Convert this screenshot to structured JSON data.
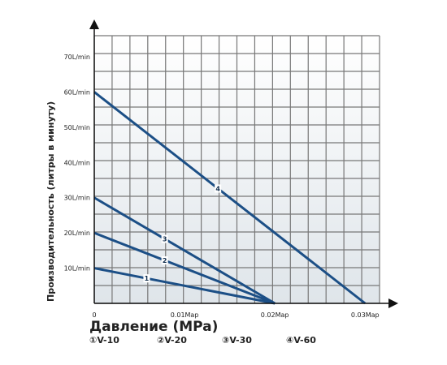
{
  "chart_data": {
    "type": "line",
    "xlabel": "Давление (MPa)",
    "ylabel": "Производительность (литры в минуту)",
    "xlim": [
      0,
      0.0316
    ],
    "ylim": [
      0,
      76
    ],
    "grid": true,
    "x_ticks": [
      {
        "value": 0,
        "label": "0"
      },
      {
        "value": 0.01,
        "label": "0.01Map"
      },
      {
        "value": 0.02,
        "label": "0.02Map"
      },
      {
        "value": 0.03,
        "label": "0.03Map"
      }
    ],
    "y_ticks": [
      {
        "value": 10,
        "label": "10L/min"
      },
      {
        "value": 20,
        "label": "20L/min"
      },
      {
        "value": 30,
        "label": "30L/min"
      },
      {
        "value": 40,
        "label": "40L/min"
      },
      {
        "value": 50,
        "label": "50L/min"
      },
      {
        "value": 60,
        "label": "60L/min"
      },
      {
        "value": 70,
        "label": "70L/min"
      }
    ],
    "line_color": "#1c4f86",
    "series": [
      {
        "marker": "1",
        "name": "V-10",
        "x": [
          0,
          0.02
        ],
        "y": [
          10,
          0
        ],
        "marker_x": 0.0058
      },
      {
        "marker": "2",
        "name": "V-20",
        "x": [
          0,
          0.02
        ],
        "y": [
          20,
          0
        ],
        "marker_x": 0.0078
      },
      {
        "marker": "3",
        "name": "V-30",
        "x": [
          0,
          0.02
        ],
        "y": [
          30,
          0
        ],
        "marker_x": 0.0078
      },
      {
        "marker": "4",
        "name": "V-60",
        "x": [
          0,
          0.03
        ],
        "y": [
          60,
          0
        ],
        "marker_x": 0.0137
      }
    ]
  },
  "legend": [
    {
      "symbol": "①",
      "label": "V-10"
    },
    {
      "symbol": "②",
      "label": "V-20"
    },
    {
      "symbol": "③",
      "label": "V-30"
    },
    {
      "symbol": "④",
      "label": "V-60"
    }
  ]
}
